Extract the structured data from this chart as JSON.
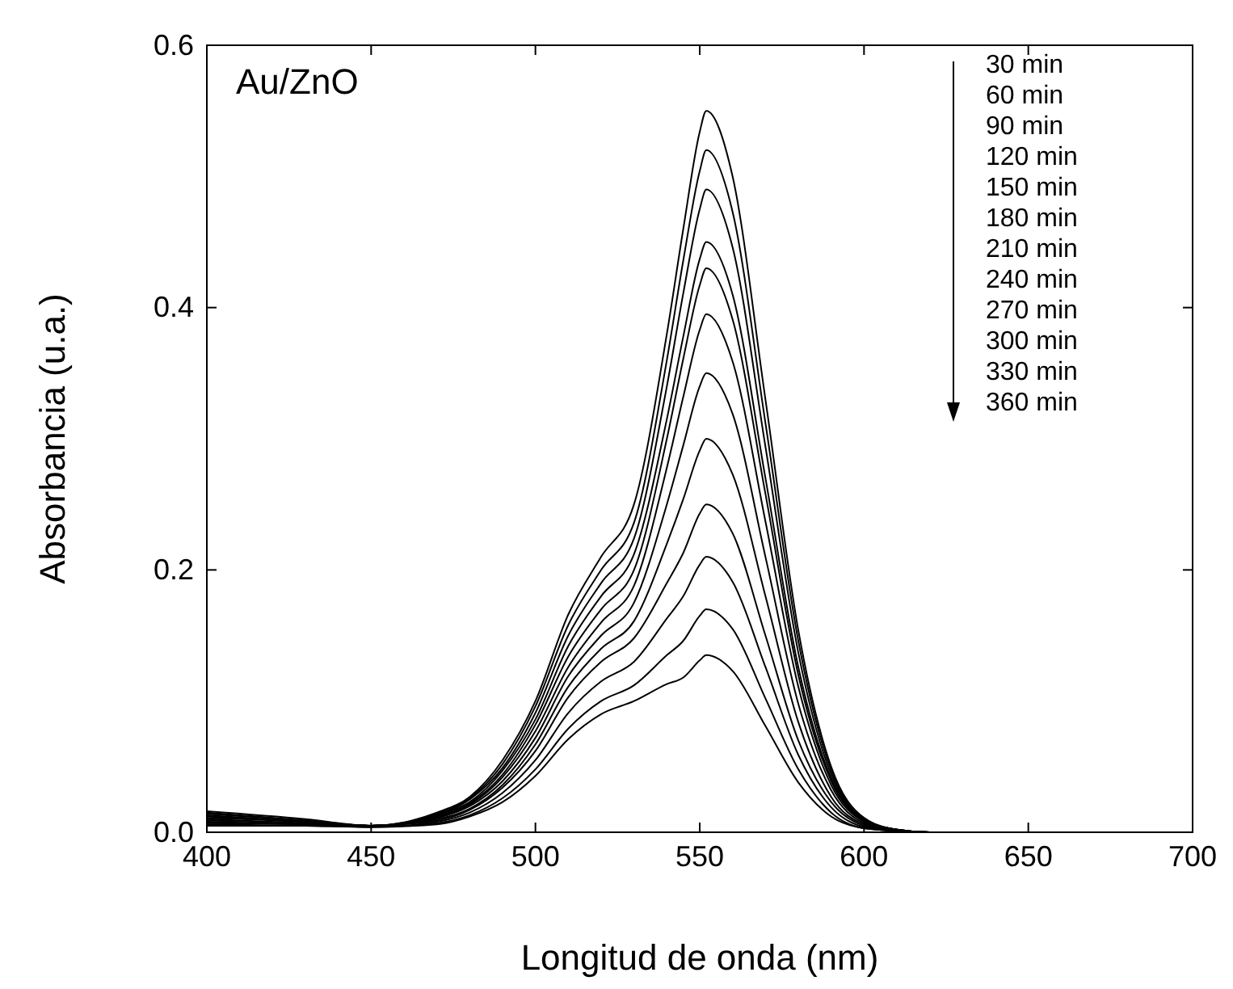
{
  "chart_data": {
    "type": "line",
    "xlabel": "Longitud de onda (nm)",
    "ylabel": "Absorbancia (u.a.)",
    "xlim": [
      400,
      700
    ],
    "xticks": [
      400,
      450,
      500,
      550,
      600,
      650,
      700
    ],
    "ylim": [
      0,
      0.6
    ],
    "yticks": [
      {
        "value": 0,
        "label": "0.0"
      },
      {
        "value": 0.2,
        "label": "0.2"
      },
      {
        "value": 0.4,
        "label": "0.4"
      },
      {
        "value": 0.6,
        "label": "0.6"
      }
    ],
    "grid": false,
    "marker": "none",
    "line_style": "solid",
    "annotations": [
      "Au/ZnO",
      "30 min",
      "60 min",
      "90 min",
      "120 min",
      "150 min",
      "180 min",
      "210 min",
      "240 min",
      "270 min",
      "300 min",
      "330 min",
      "360 min"
    ],
    "x": [
      400,
      430,
      450,
      470,
      480,
      490,
      500,
      510,
      520,
      530,
      540,
      545,
      550,
      552,
      560,
      570,
      580,
      590,
      600,
      610,
      620,
      700
    ],
    "series": [
      {
        "color": "#000000",
        "values": [
          0.016,
          0.01,
          0.005,
          0.015,
          0.027,
          0.055,
          0.1,
          0.166,
          0.21,
          0.25,
          0.38,
          0.46,
          0.534,
          0.55,
          0.5,
          0.33,
          0.154,
          0.05,
          0.011,
          0.002,
          0,
          0
        ]
      },
      {
        "color": "#000000",
        "values": [
          0.015,
          0.009,
          0.005,
          0.014,
          0.026,
          0.052,
          0.096,
          0.158,
          0.2,
          0.236,
          0.36,
          0.436,
          0.504,
          0.52,
          0.473,
          0.312,
          0.146,
          0.047,
          0.01,
          0.002,
          0,
          0
        ]
      },
      {
        "color": "#000000",
        "values": [
          0.014,
          0.009,
          0.005,
          0.013,
          0.025,
          0.049,
          0.091,
          0.15,
          0.19,
          0.224,
          0.34,
          0.411,
          0.475,
          0.49,
          0.446,
          0.294,
          0.137,
          0.044,
          0.01,
          0.002,
          0,
          0
        ]
      },
      {
        "color": "#000000",
        "values": [
          0.013,
          0.008,
          0.005,
          0.013,
          0.023,
          0.047,
          0.086,
          0.142,
          0.18,
          0.212,
          0.315,
          0.378,
          0.437,
          0.45,
          0.41,
          0.27,
          0.126,
          0.041,
          0.009,
          0.002,
          0,
          0
        ]
      },
      {
        "color": "#000000",
        "values": [
          0.012,
          0.008,
          0.005,
          0.012,
          0.022,
          0.044,
          0.082,
          0.134,
          0.17,
          0.2,
          0.3,
          0.361,
          0.417,
          0.43,
          0.391,
          0.258,
          0.12,
          0.039,
          0.009,
          0.002,
          0,
          0
        ]
      },
      {
        "color": "#000000",
        "values": [
          0.011,
          0.008,
          0.005,
          0.011,
          0.021,
          0.042,
          0.077,
          0.126,
          0.16,
          0.188,
          0.278,
          0.332,
          0.383,
          0.395,
          0.359,
          0.237,
          0.111,
          0.036,
          0.008,
          0.001,
          0,
          0
        ]
      },
      {
        "color": "#000000",
        "values": [
          0.01,
          0.007,
          0.005,
          0.011,
          0.02,
          0.039,
          0.072,
          0.119,
          0.15,
          0.175,
          0.25,
          0.295,
          0.34,
          0.35,
          0.319,
          0.21,
          0.098,
          0.032,
          0.007,
          0.001,
          0,
          0
        ]
      },
      {
        "color": "#000000",
        "values": [
          0.009,
          0.007,
          0.005,
          0.01,
          0.018,
          0.036,
          0.067,
          0.111,
          0.14,
          0.161,
          0.22,
          0.254,
          0.291,
          0.3,
          0.273,
          0.18,
          0.084,
          0.027,
          0.006,
          0.001,
          0,
          0
        ]
      },
      {
        "color": "#000000",
        "values": [
          0.008,
          0.006,
          0.005,
          0.009,
          0.017,
          0.034,
          0.062,
          0.103,
          0.13,
          0.148,
          0.19,
          0.213,
          0.243,
          0.25,
          0.228,
          0.15,
          0.07,
          0.023,
          0.005,
          0.001,
          0,
          0
        ]
      },
      {
        "color": "#000000",
        "values": [
          0.007,
          0.006,
          0.004,
          0.008,
          0.015,
          0.03,
          0.055,
          0.091,
          0.115,
          0.13,
          0.163,
          0.18,
          0.204,
          0.21,
          0.191,
          0.126,
          0.059,
          0.019,
          0.004,
          0.001,
          0,
          0
        ]
      },
      {
        "color": "#000000",
        "values": [
          0.006,
          0.005,
          0.004,
          0.007,
          0.013,
          0.026,
          0.048,
          0.079,
          0.1,
          0.112,
          0.135,
          0.146,
          0.165,
          0.17,
          0.155,
          0.102,
          0.048,
          0.015,
          0.003,
          0.001,
          0,
          0
        ]
      },
      {
        "color": "#000000",
        "values": [
          0.005,
          0.005,
          0.004,
          0.006,
          0.012,
          0.023,
          0.043,
          0.071,
          0.09,
          0.1,
          0.113,
          0.118,
          0.131,
          0.135,
          0.123,
          0.081,
          0.038,
          0.012,
          0.003,
          0.001,
          0,
          0
        ]
      }
    ]
  }
}
